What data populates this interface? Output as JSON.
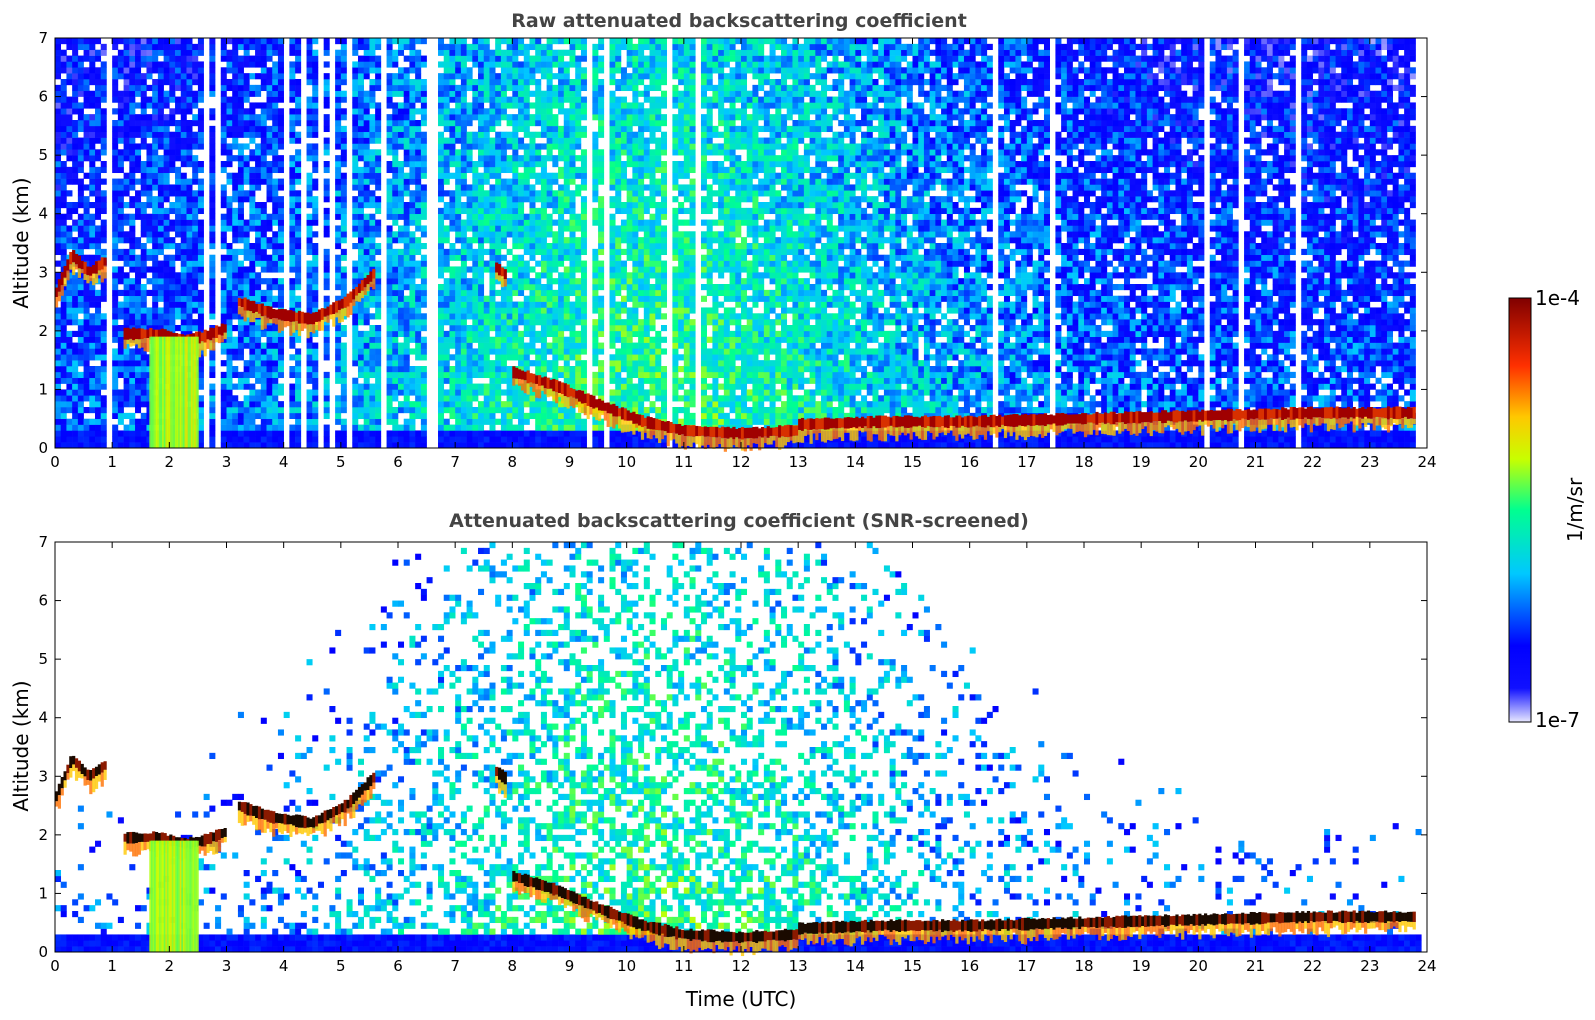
{
  "chart_data": [
    {
      "type": "heatmap",
      "title": "Raw attenuated backscattering coefficient",
      "xlabel": "",
      "ylabel": "Altitude (km)",
      "xlim": [
        0,
        24
      ],
      "ylim": [
        0,
        7
      ],
      "xticks": [
        "0",
        "1",
        "2",
        "3",
        "4",
        "5",
        "6",
        "7",
        "8",
        "9",
        "10",
        "11",
        "12",
        "13",
        "14",
        "15",
        "16",
        "17",
        "18",
        "19",
        "20",
        "21",
        "22",
        "23",
        "24"
      ],
      "yticks": [
        "0",
        "1",
        "2",
        "3",
        "4",
        "5",
        "6",
        "7"
      ],
      "screened": false,
      "features": {
        "surface_layer_top_km": 0.3,
        "cloud_layers": [
          {
            "t": [
              0.0,
              0.3,
              0.6,
              0.9
            ],
            "alt": [
              2.6,
              3.3,
              3.0,
              3.2
            ]
          },
          {
            "t": [
              1.2,
              1.8,
              2.3,
              2.6
            ],
            "alt": [
              1.95,
              1.95,
              1.85,
              1.9
            ]
          },
          {
            "t": [
              2.6,
              3.0
            ],
            "alt": [
              1.9,
              2.05
            ]
          },
          {
            "t": [
              3.2,
              3.8,
              4.5,
              5.1,
              5.6
            ],
            "alt": [
              2.5,
              2.3,
              2.2,
              2.5,
              3.0
            ]
          },
          {
            "t": [
              7.7,
              7.9
            ],
            "alt": [
              3.1,
              2.95
            ]
          },
          {
            "t": [
              8.0,
              8.8,
              9.5,
              10.3,
              11.0,
              12.0,
              13.0
            ],
            "alt": [
              1.3,
              1.05,
              0.75,
              0.45,
              0.3,
              0.25,
              0.3
            ]
          },
          {
            "t": [
              13.0,
              14.5,
              16.0,
              18.0,
              20.0,
              22.0,
              23.8
            ],
            "alt": [
              0.4,
              0.45,
              0.45,
              0.5,
              0.55,
              0.6,
              0.6
            ]
          }
        ]
      }
    },
    {
      "type": "heatmap",
      "title": "Attenuated backscattering coefficient (SNR-screened)",
      "xlabel": "Time (UTC)",
      "ylabel": "Altitude (km)",
      "xlim": [
        0,
        24
      ],
      "ylim": [
        0,
        7
      ],
      "xticks": [
        "0",
        "1",
        "2",
        "3",
        "4",
        "5",
        "6",
        "7",
        "8",
        "9",
        "10",
        "11",
        "12",
        "13",
        "14",
        "15",
        "16",
        "17",
        "18",
        "19",
        "20",
        "21",
        "22",
        "23",
        "24"
      ],
      "yticks": [
        "0",
        "1",
        "2",
        "3",
        "4",
        "5",
        "6",
        "7"
      ],
      "screened": true
    }
  ],
  "colorbar": {
    "max_label": "1e-4",
    "min_label": "1e-7",
    "unit": "1/m/sr",
    "scale": "log",
    "colors": [
      "#e8e8ff",
      "#0000ff",
      "#00bfff",
      "#00ff80",
      "#ffff00",
      "#ff8000",
      "#ff0000",
      "#800000"
    ]
  }
}
